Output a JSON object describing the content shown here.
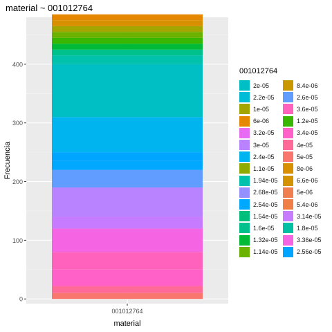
{
  "title": "material ~ 001012764",
  "chart_data": {
    "type": "bar",
    "stacked": true,
    "categories": [
      "001012764"
    ],
    "xlabel": "material",
    "ylabel": "Frecuencia",
    "ylim": [
      -8,
      480
    ],
    "yticks": [
      0,
      100,
      200,
      300,
      400
    ],
    "grid": true,
    "legend_position": "right",
    "legend_title": "001012764",
    "legend": [
      {
        "label": "2e-05",
        "color": "#00BFC4"
      },
      {
        "label": "2.2e-05",
        "color": "#00BCD6"
      },
      {
        "label": "1e-05",
        "color": "#A3A500"
      },
      {
        "label": "6e-06",
        "color": "#E58700"
      },
      {
        "label": "3.2e-05",
        "color": "#E76BF3"
      },
      {
        "label": "3e-05",
        "color": "#B983FF"
      },
      {
        "label": "2.4e-05",
        "color": "#00B4EF"
      },
      {
        "label": "1.1e-05",
        "color": "#8FAA00"
      },
      {
        "label": "1.94e-05",
        "color": "#00C1AB"
      },
      {
        "label": "2.68e-05",
        "color": "#9590FF"
      },
      {
        "label": "2.54e-05",
        "color": "#00A9FF"
      },
      {
        "label": "1.54e-05",
        "color": "#00BF7D"
      },
      {
        "label": "1.6e-05",
        "color": "#00C08B"
      },
      {
        "label": "1.32e-05",
        "color": "#00BA38"
      },
      {
        "label": "1.14e-05",
        "color": "#6BB100"
      },
      {
        "label": "8.4e-06",
        "color": "#C99800"
      },
      {
        "label": "2.6e-05",
        "color": "#619CFF"
      },
      {
        "label": "3.6e-05",
        "color": "#FF62BC"
      },
      {
        "label": "1.2e-05",
        "color": "#39B600"
      },
      {
        "label": "3.4e-05",
        "color": "#FF61C9"
      },
      {
        "label": "4e-05",
        "color": "#FF6A98"
      },
      {
        "label": "5e-05",
        "color": "#F8766D"
      },
      {
        "label": "8e-06",
        "color": "#D89000"
      },
      {
        "label": "6.6e-06",
        "color": "#D39200"
      },
      {
        "label": "5e-06",
        "color": "#F07F4F"
      },
      {
        "label": "5.4e-06",
        "color": "#EF7F47"
      },
      {
        "label": "3.14e-05",
        "color": "#C77CFF"
      },
      {
        "label": "1.8e-05",
        "color": "#00C0A3"
      },
      {
        "label": "3.36e-05",
        "color": "#F564E3"
      },
      {
        "label": "2.56e-05",
        "color": "#00A5FF"
      }
    ],
    "series": [
      {
        "value": 10,
        "color": "#F8766D"
      },
      {
        "value": 12,
        "color": "#FF6A98"
      },
      {
        "value": 28,
        "color": "#FF61C9"
      },
      {
        "value": 30,
        "color": "#FF62BC"
      },
      {
        "value": 40,
        "color": "#F564E3"
      },
      {
        "value": 20,
        "color": "#C77CFF"
      },
      {
        "value": 50,
        "color": "#B983FF"
      },
      {
        "value": 30,
        "color": "#619CFF"
      },
      {
        "value": 15,
        "color": "#00A9FF"
      },
      {
        "value": 15,
        "color": "#00A5FF"
      },
      {
        "value": 60,
        "color": "#00B4EF"
      },
      {
        "value": 90,
        "color": "#00BFC4"
      },
      {
        "value": 15,
        "color": "#00C1AB"
      },
      {
        "value": 10,
        "color": "#00C08B"
      },
      {
        "value": 10,
        "color": "#00BA38"
      },
      {
        "value": 10,
        "color": "#39B600"
      },
      {
        "value": 10,
        "color": "#6BB100"
      },
      {
        "value": 10,
        "color": "#A3A500"
      },
      {
        "value": 10,
        "color": "#D89000"
      },
      {
        "value": 10,
        "color": "#E58700"
      }
    ]
  }
}
